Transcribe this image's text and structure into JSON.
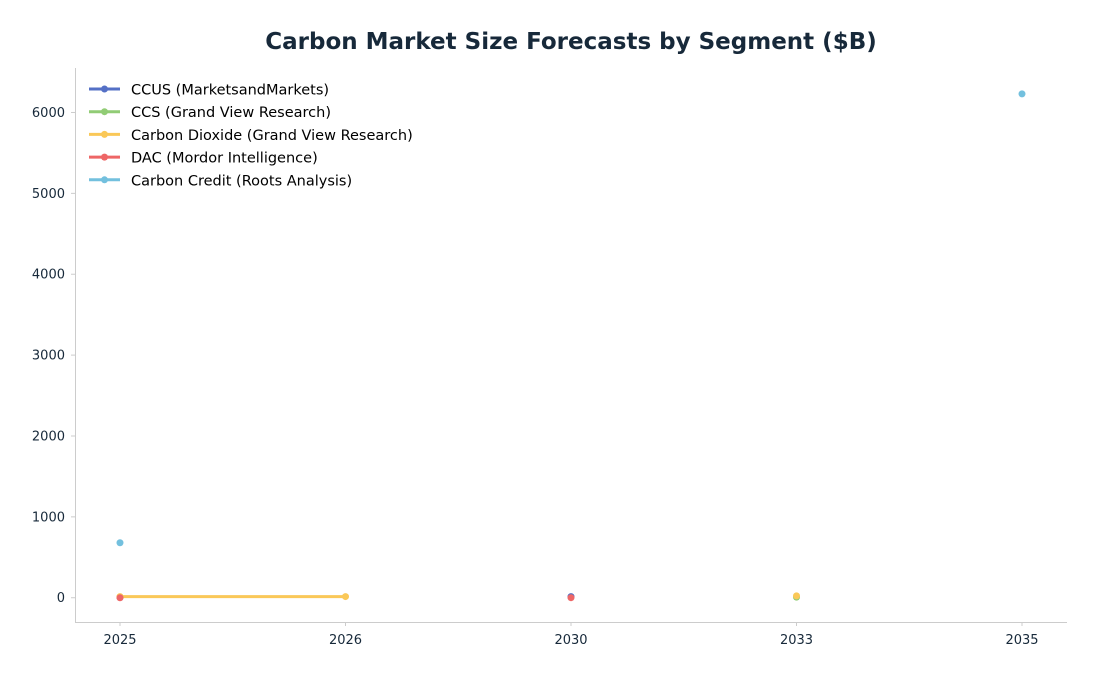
{
  "chart_data": {
    "type": "line",
    "title": "Carbon Market Size Forecasts by Segment ($B)",
    "xlabel": "",
    "ylabel": "",
    "categories": [
      "2025",
      "2026",
      "2030",
      "2033",
      "2035"
    ],
    "ylim": [
      -300,
      6550
    ],
    "yticks": [
      0,
      1000,
      2000,
      3000,
      4000,
      5000,
      6000
    ],
    "yticks_labels": [
      "0",
      "1000",
      "2000",
      "3000",
      "4000",
      "5000",
      "6000"
    ],
    "grid": false,
    "legend_position": "top-left",
    "series": [
      {
        "name": "CCUS (MarketsandMarkets)",
        "color": "#5470c6",
        "values": [
          3.5,
          null,
          14.5,
          null,
          null
        ]
      },
      {
        "name": "CCS (Grand View Research)",
        "color": "#91cc75",
        "values": [
          4.0,
          null,
          null,
          8.0,
          null
        ]
      },
      {
        "name": "Carbon Dioxide (Grand View Research)",
        "color": "#fac858",
        "values": [
          14.0,
          14.5,
          null,
          23.0,
          null
        ]
      },
      {
        "name": "DAC (Mordor Intelligence)",
        "color": "#ee6666",
        "values": [
          0.1,
          null,
          0.4,
          null,
          null
        ]
      },
      {
        "name": "Carbon Credit (Roots Analysis)",
        "color": "#73c0de",
        "values": [
          680,
          null,
          null,
          null,
          6230
        ]
      }
    ]
  }
}
